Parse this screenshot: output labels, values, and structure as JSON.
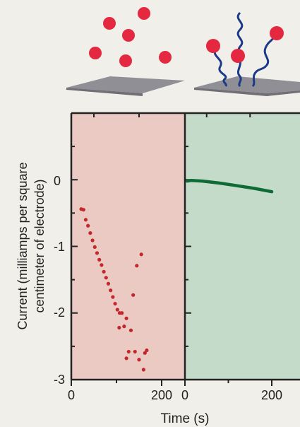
{
  "chart_data": [
    {
      "type": "scatter",
      "panel": "left",
      "background": "#eccac4",
      "marker_color": "#c3262b",
      "xlim": [
        0,
        250
      ],
      "ylim": [
        -3,
        1
      ],
      "xticks": [
        "0",
        "200"
      ],
      "yticks": [
        "0",
        "-1",
        "-2",
        "-3"
      ],
      "ylabel_line1": "Current (milliamps per square",
      "ylabel_line2": "centimeter of electrode)",
      "series": [
        {
          "points": [
            [
              22,
              -0.44
            ],
            [
              27,
              -0.45
            ],
            [
              32,
              -0.6
            ],
            [
              37,
              -0.69
            ],
            [
              42,
              -0.8
            ],
            [
              47,
              -0.91
            ],
            [
              52,
              -1.01
            ],
            [
              57,
              -1.1
            ],
            [
              62,
              -1.2
            ],
            [
              67,
              -1.28
            ],
            [
              72,
              -1.38
            ],
            [
              77,
              -1.47
            ],
            [
              82,
              -1.56
            ],
            [
              87,
              -1.66
            ],
            [
              92,
              -1.76
            ],
            [
              97,
              -1.86
            ],
            [
              102,
              -1.95
            ],
            [
              107,
              -2.0
            ],
            [
              112,
              -2.0
            ],
            [
              117,
              -2.2
            ],
            [
              122,
              -2.68
            ],
            [
              127,
              -2.58
            ],
            [
              132,
              -2.26
            ],
            [
              137,
              -1.73
            ],
            [
              141,
              -2.58
            ],
            [
              145,
              -1.29
            ],
            [
              150,
              -2.7
            ],
            [
              155,
              -1.12
            ],
            [
              160,
              -2.85
            ],
            [
              163,
              -2.6
            ],
            [
              167,
              -2.56
            ],
            [
              106,
              -2.22
            ],
            [
              122,
              -2.08
            ]
          ]
        }
      ]
    },
    {
      "type": "line",
      "panel": "right",
      "background": "#c4dbca",
      "line_color": "#0e6b36",
      "xlim": [
        0,
        200
      ],
      "ylim": [
        -3,
        1
      ],
      "xticks": [
        "0",
        "200"
      ],
      "series": [
        {
          "x": [
            5,
            15,
            40,
            80,
            120,
            160,
            200
          ],
          "y": [
            -0.02,
            -0.01,
            -0.02,
            -0.05,
            -0.09,
            -0.13,
            -0.18
          ]
        }
      ]
    }
  ],
  "xlabel": "Time (s)",
  "illustration": {
    "ball_color": "#e4283f",
    "polymer_color": "#1c3a8a",
    "electrode_color": "#8f8f95"
  }
}
